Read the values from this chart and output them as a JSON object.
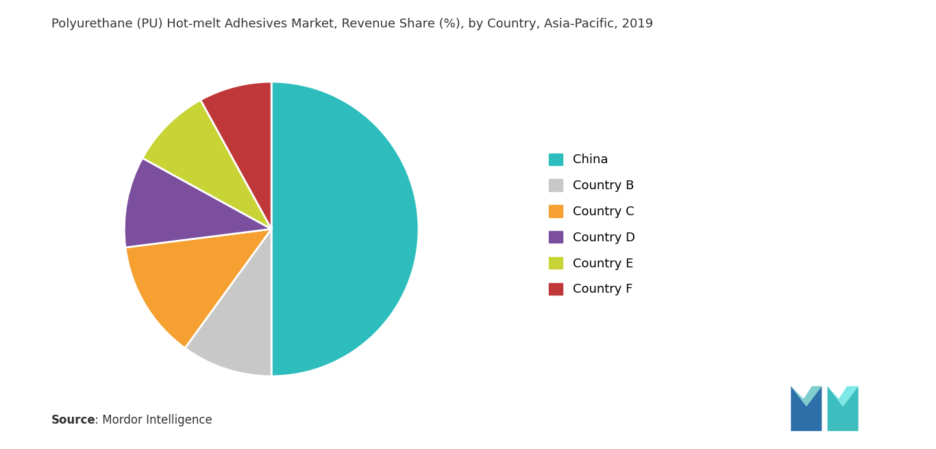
{
  "title": "Polyurethane (PU) Hot-melt Adhesives Market, Revenue Share (%), by Country, Asia-Pacific, 2019",
  "labels": [
    "China",
    "Country B",
    "Country C",
    "Country D",
    "Country E",
    "Country F"
  ],
  "sizes": [
    50,
    10,
    13,
    10,
    9,
    8
  ],
  "colors": [
    "#2dbdbd",
    "#c8c8c8",
    "#f5a030",
    "#7b4f9e",
    "#c8d435",
    "#c0373a"
  ],
  "source_bold": "Source",
  "source_rest": " : Mordor Intelligence",
  "background_color": "#ffffff",
  "title_fontsize": 13,
  "legend_fontsize": 13,
  "source_fontsize": 12
}
